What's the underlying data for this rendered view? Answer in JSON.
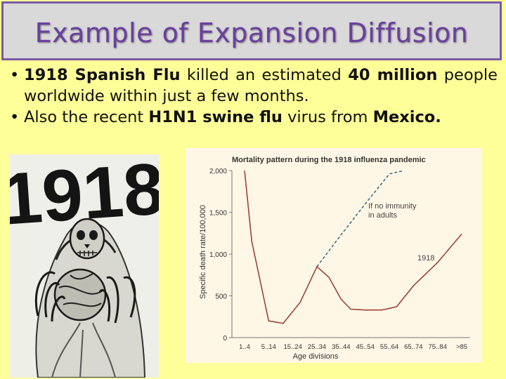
{
  "slide": {
    "title": "Example of Expansion Diffusion",
    "bullet1": {
      "t1": "1918 Spanish Flu",
      "t2": " killed an estimated ",
      "t3": "40 million",
      "t4": " people worldwide within just a few months."
    },
    "bullet2": {
      "t1": "Also the recent ",
      "t2": "H1N1 swine flu",
      "t3": " virus from ",
      "t4": "Mexico."
    }
  },
  "poster": {
    "text": "1918"
  },
  "colors": {
    "background": "#ffff99",
    "title": "#6b3fa0",
    "title_box": "#d9d9d9",
    "series_1918": "#a0413b",
    "series_no_immunity": "#3f6f8a"
  },
  "chart_data": {
    "type": "line",
    "title": "Mortality pattern during the 1918 influenza pandemic",
    "xlabel": "Age divisions",
    "ylabel": "Specific death rate/100,000",
    "categories": [
      "1..4",
      "5..14",
      "15..24",
      "25..34",
      "35..44",
      "45..54",
      "55..64",
      "65..74",
      "75..84",
      ">85"
    ],
    "ylim": [
      0,
      2000
    ],
    "yticks": [
      "0",
      "500",
      "1,000",
      "1,500",
      "2,000"
    ],
    "grid": false,
    "series": [
      {
        "name": "1918",
        "style": "solid",
        "x": [
          0,
          0.3,
          1,
          1.6,
          2.3,
          3,
          3.5,
          4,
          4.4,
          5,
          5.7,
          6.3,
          7,
          8,
          9
        ],
        "y": [
          2000,
          1150,
          200,
          170,
          420,
          850,
          720,
          460,
          340,
          330,
          330,
          370,
          620,
          900,
          1240
        ]
      },
      {
        "name": "If no immunity in adults",
        "style": "dashed",
        "x": [
          3,
          4,
          5,
          6,
          6.6
        ],
        "y": [
          850,
          1230,
          1600,
          1960,
          2000
        ]
      }
    ],
    "annotations": [
      {
        "text": "If no immunity",
        "series": "If no immunity in adults"
      },
      {
        "text": "in adults",
        "series": "If no immunity in adults"
      },
      {
        "text": "1918",
        "series": "1918"
      }
    ]
  }
}
